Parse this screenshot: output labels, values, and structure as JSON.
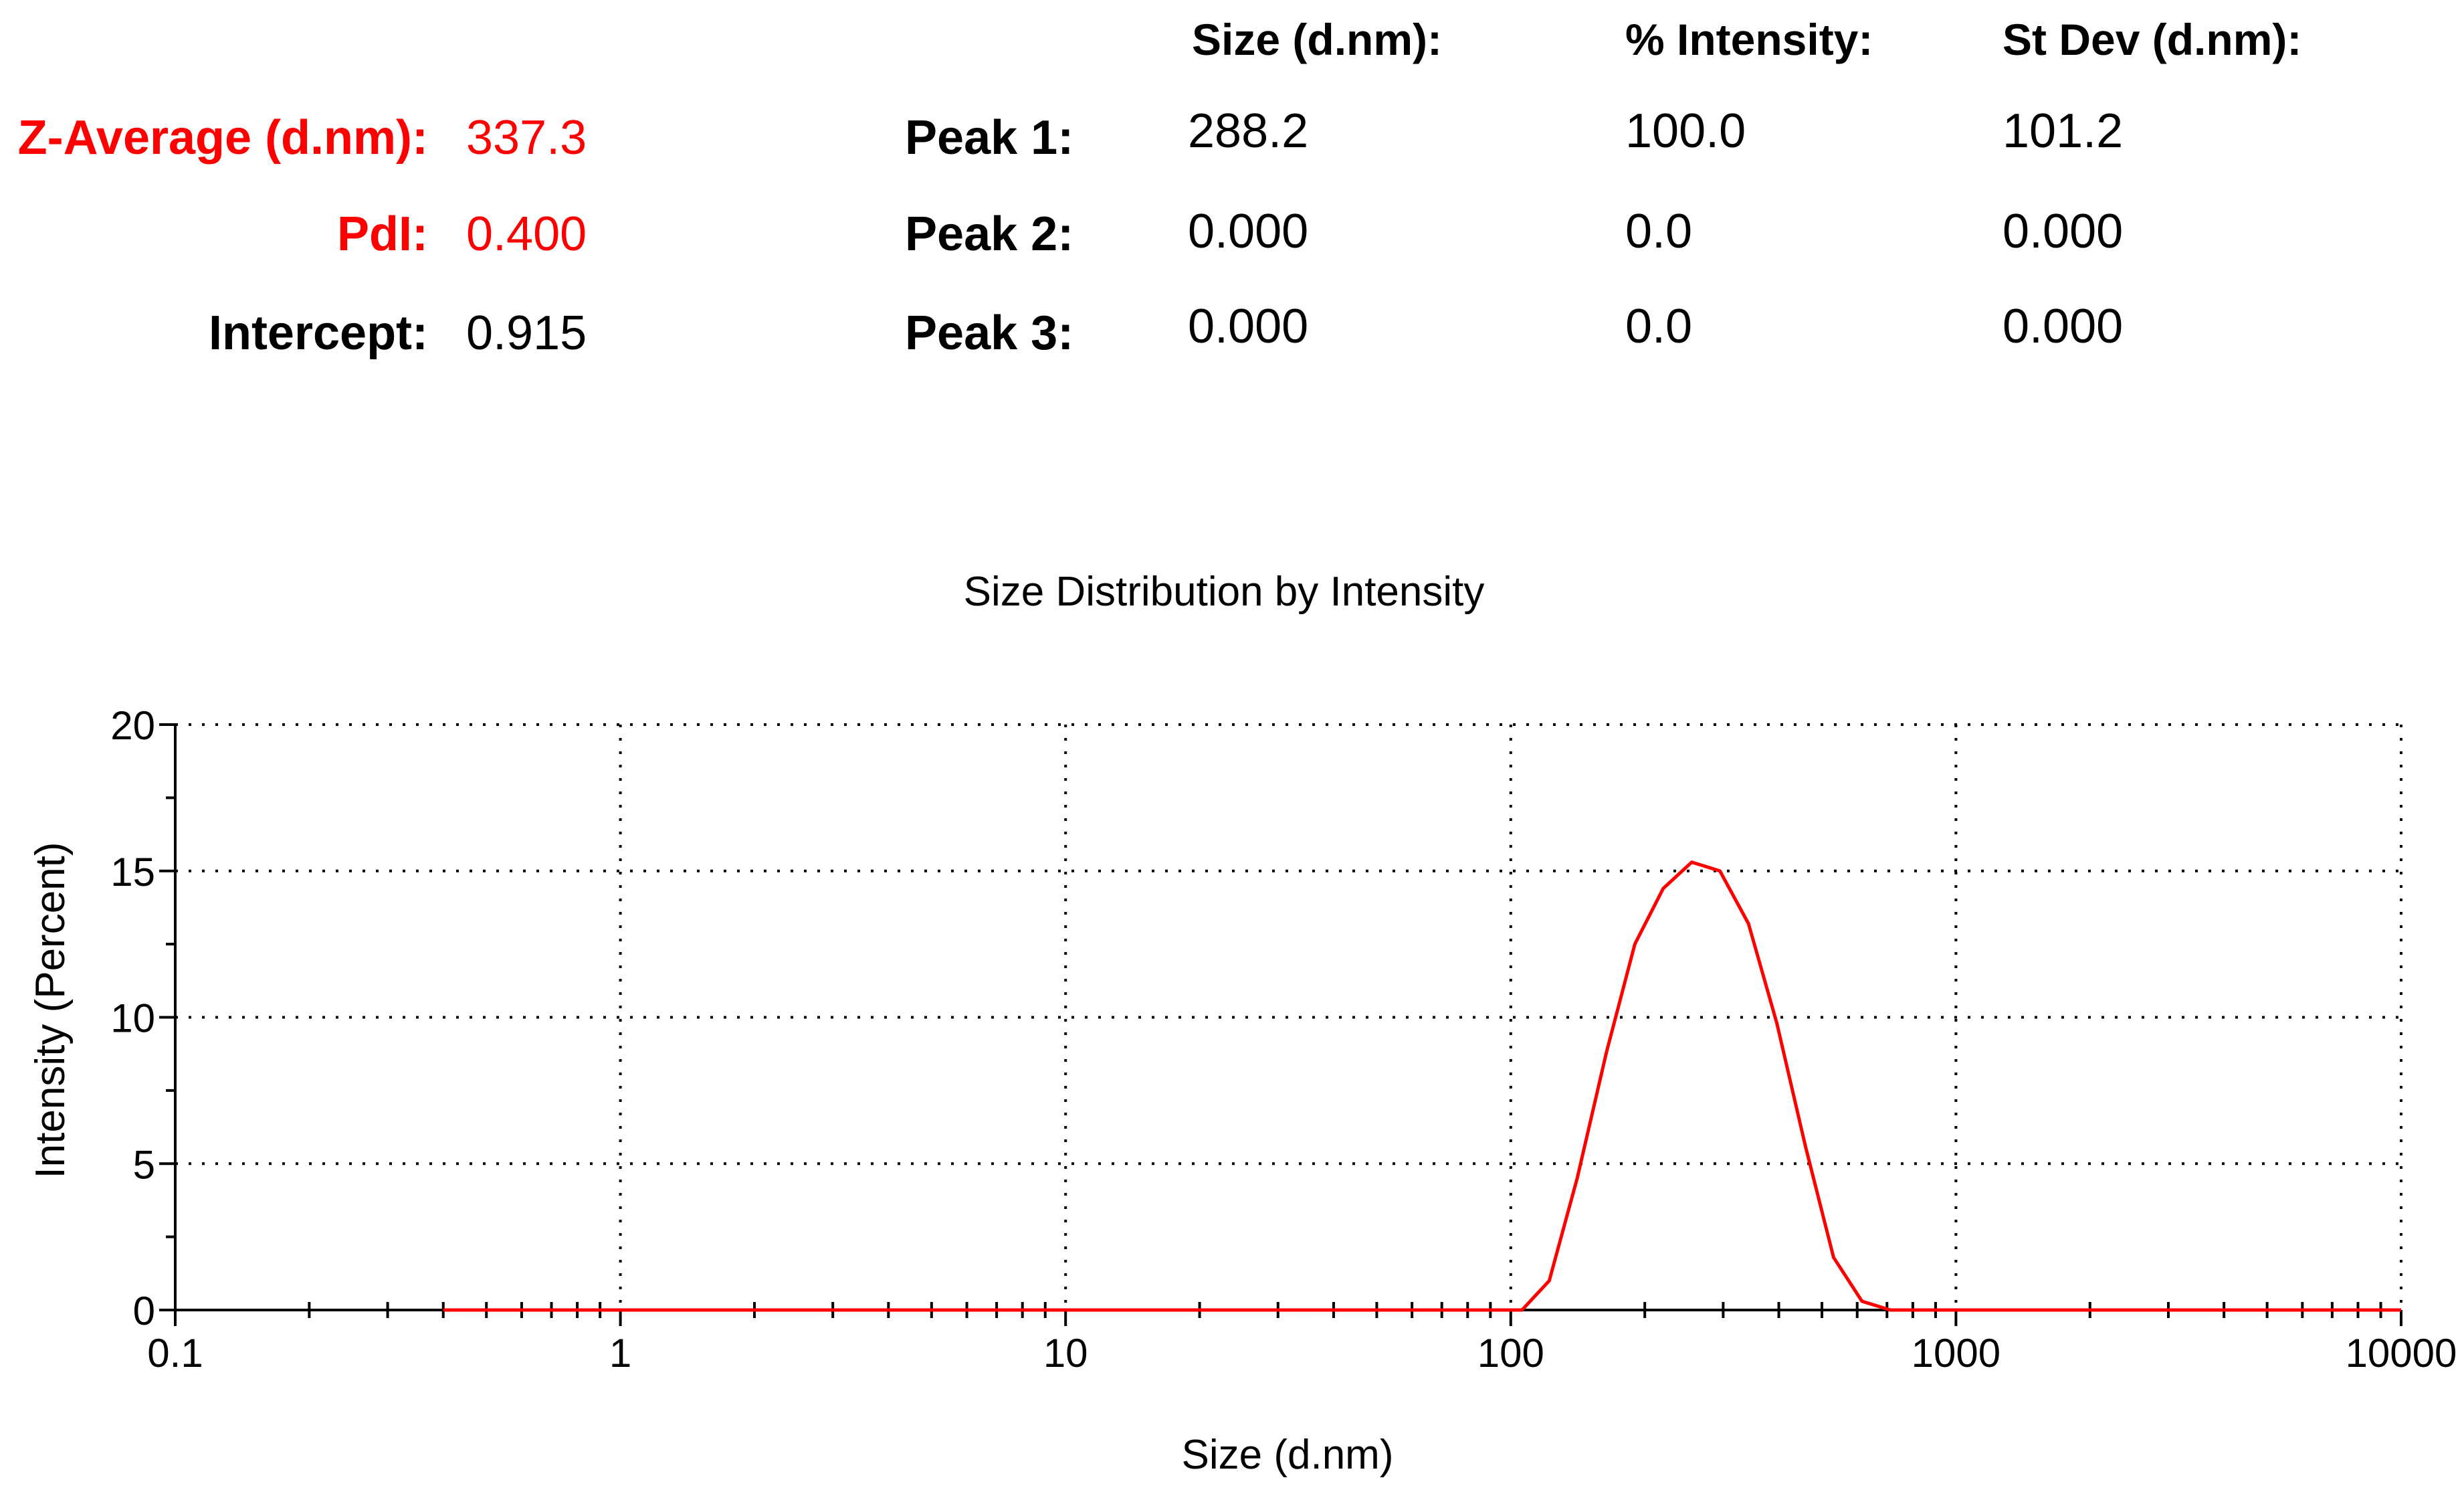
{
  "summary": {
    "z_average_label": "Z-Average (d.nm):",
    "z_average_value": "337.3",
    "pdi_label": "PdI:",
    "pdi_value": "0.400",
    "intercept_label": "Intercept:",
    "intercept_value": "0.915"
  },
  "peaks_table": {
    "headers": [
      "Size (d.nm):",
      "% Intensity:",
      "St Dev (d.nm):"
    ],
    "rows": [
      {
        "label": "Peak 1:",
        "size": "288.2",
        "intensity": "100.0",
        "stdev": "101.2"
      },
      {
        "label": "Peak 2:",
        "size": "0.000",
        "intensity": "0.0",
        "stdev": "0.000"
      },
      {
        "label": "Peak 3:",
        "size": "0.000",
        "intensity": "0.0",
        "stdev": "0.000"
      }
    ]
  },
  "colors": {
    "highlight": "#ff0000",
    "series": "#ff0000",
    "axis": "#000000",
    "grid": "#000000"
  },
  "chart_data": {
    "type": "line",
    "title": "Size Distribution by Intensity",
    "xlabel": "Size (d.nm)",
    "ylabel": "Intensity (Percent)",
    "x_scale": "log",
    "xlim": [
      0.1,
      10000
    ],
    "ylim": [
      0,
      20
    ],
    "x_ticks": [
      "0.1",
      "1",
      "10",
      "100",
      "1000",
      "10000"
    ],
    "y_ticks": [
      "0",
      "5",
      "10",
      "15",
      "20"
    ],
    "grid": true,
    "legend": "none",
    "series": [
      {
        "x": [
          0.4,
          1,
          10,
          50,
          100,
          106,
          122,
          141,
          164,
          190,
          220,
          255,
          295,
          342,
          396,
          459,
          531,
          615,
          712,
          1000,
          10000
        ],
        "y": [
          0,
          0,
          0,
          0,
          0,
          0,
          1.0,
          4.5,
          8.8,
          12.5,
          14.4,
          15.3,
          15.0,
          13.2,
          9.8,
          5.6,
          1.8,
          0.3,
          0,
          0,
          0
        ]
      }
    ]
  }
}
